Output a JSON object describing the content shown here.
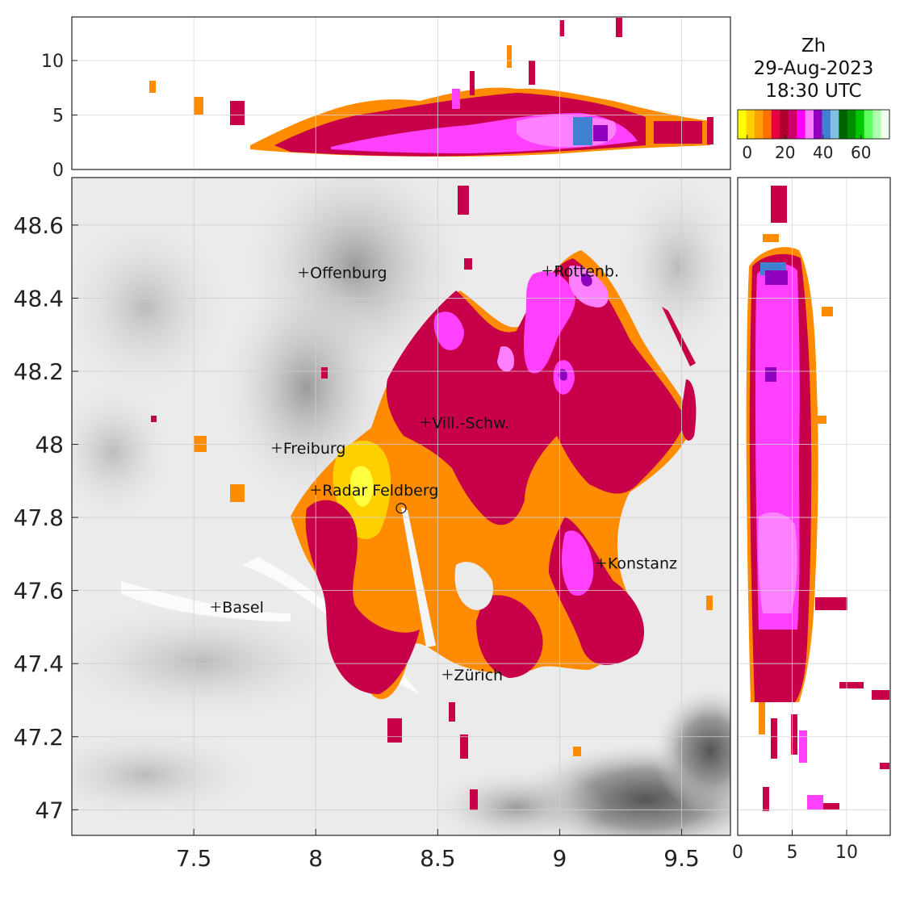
{
  "title": {
    "line1": "Zh",
    "line2": "29-Aug-2023",
    "line3": "18:30 UTC"
  },
  "colorbar": {
    "colors": [
      "#ffff00",
      "#ffd000",
      "#ffa000",
      "#ff7000",
      "#e8003c",
      "#b0002e",
      "#d0006a",
      "#ff00ff",
      "#ff80ff",
      "#9000c0",
      "#4080d0",
      "#80c0e0",
      "#006400",
      "#008c00",
      "#00c800",
      "#60ff60",
      "#b0ffb0",
      "#f0fff0"
    ],
    "ticks": [
      "0",
      "20",
      "40",
      "60"
    ]
  },
  "map": {
    "xticks": [
      "7.5",
      "8",
      "8.5",
      "9",
      "9.5"
    ],
    "yticks": [
      "48.6",
      "48.4",
      "48.2",
      "48",
      "47.8",
      "47.6",
      "47.4",
      "47.2",
      "47"
    ],
    "radar_site": {
      "lon": 8.35,
      "lat": 47.825
    },
    "cities": [
      {
        "name": "Offenburg",
        "lon": 7.95,
        "lat": 48.47
      },
      {
        "name": "Rottenb.",
        "lon": 8.95,
        "lat": 48.475
      },
      {
        "name": "Vill.-Schw.",
        "lon": 8.45,
        "lat": 48.06
      },
      {
        "name": "Freiburg",
        "lon": 7.84,
        "lat": 47.99
      },
      {
        "name": "Radar Feldberg",
        "lon": 8.0,
        "lat": 47.875
      },
      {
        "name": "Konstanz",
        "lon": 9.17,
        "lat": 47.675
      },
      {
        "name": "Basel",
        "lon": 7.59,
        "lat": 47.555
      },
      {
        "name": "Zürich",
        "lon": 8.54,
        "lat": 47.37
      }
    ]
  },
  "top_panel": {
    "yticks": [
      "0",
      "5",
      "10"
    ]
  },
  "right_panel": {
    "xticks": [
      "0",
      "5",
      "10"
    ]
  },
  "chart_data": {
    "type": "heatmap",
    "variable": "Zh",
    "map_xlim": [
      7.0,
      9.7
    ],
    "map_ylim": [
      46.93,
      48.73
    ],
    "height_lim": [
      0,
      14
    ],
    "colorbar_lim": [
      -5,
      75
    ]
  }
}
